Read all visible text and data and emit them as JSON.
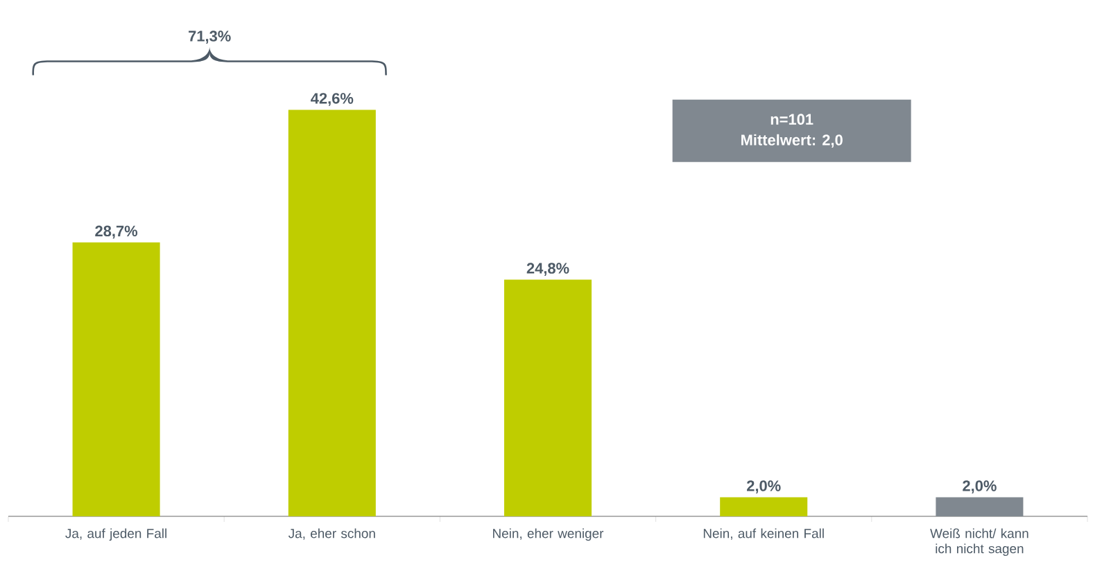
{
  "chart_data": {
    "type": "bar",
    "categories": [
      "Ja, auf jeden Fall",
      "Ja, eher schon",
      "Nein, eher weniger",
      "Nein, auf keinen Fall",
      "Weiß nicht/ kann ich nicht sagen"
    ],
    "values": [
      28.7,
      42.6,
      24.8,
      2.0,
      2.0
    ],
    "colors": [
      "#bfcd00",
      "#bfcd00",
      "#bfcd00",
      "#bfcd00",
      "#808890"
    ],
    "value_labels": [
      "28,7%",
      "42,6%",
      "24,8%",
      "2,0%",
      "2,0%"
    ],
    "annotations": [
      "71,3%",
      "n=101",
      "Mittelwert: 2,0"
    ],
    "tick_labels": "x",
    "grid": false
  }
}
